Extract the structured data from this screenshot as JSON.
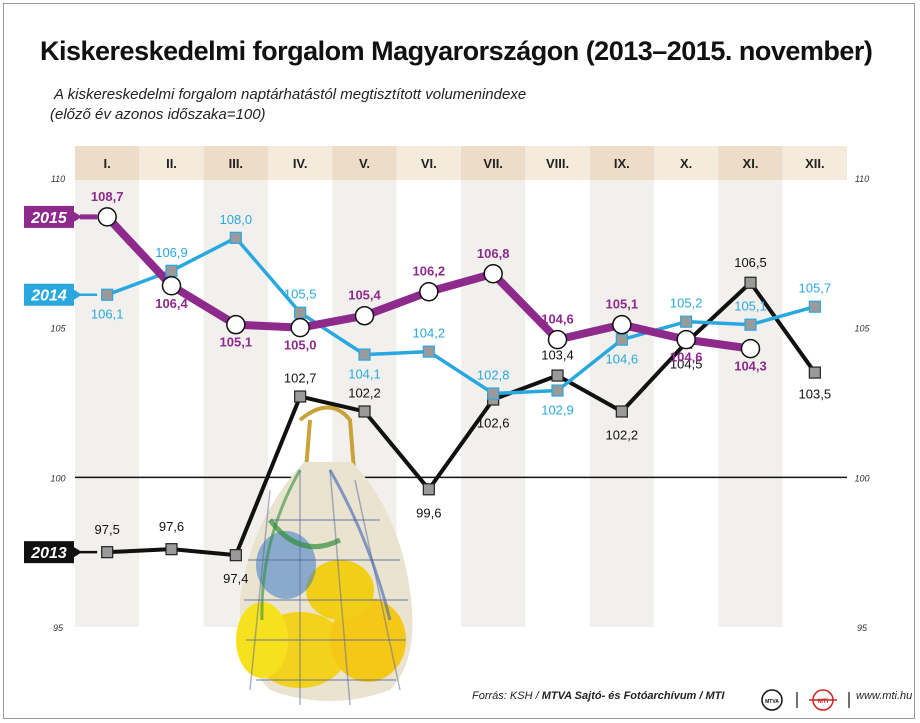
{
  "header": {
    "title": "Kiskereskedelmi forgalom Magyarországon (2013–2015. november)",
    "subtitle_line1": "A kiskereskedelmi forgalom naptárhatástól megtisztított volumenindexe",
    "subtitle_line2": "(előző év azonos időszaka=100)"
  },
  "chart_data": {
    "type": "line",
    "categories": [
      "I.",
      "II.",
      "III.",
      "IV.",
      "V.",
      "VI.",
      "VII.",
      "VIII.",
      "IX.",
      "X.",
      "XI.",
      "XII."
    ],
    "ylim": [
      95,
      110
    ],
    "yticks": [
      "95",
      "100",
      "105",
      "110"
    ],
    "reference_line": 100,
    "series": [
      {
        "name": "2015",
        "color": "#8e2a8c",
        "values": [
          108.7,
          106.4,
          105.1,
          105.0,
          105.4,
          106.2,
          106.8,
          104.6,
          105.1,
          104.6,
          104.3,
          null
        ],
        "labels": [
          "108,7",
          "106,4",
          "105,1",
          "105,0",
          "105,4",
          "106,2",
          "106,8",
          "104,6",
          "105,1",
          "104,6",
          "104,3",
          ""
        ]
      },
      {
        "name": "2014",
        "color": "#29a8df",
        "values": [
          106.1,
          106.9,
          108.0,
          105.5,
          104.1,
          104.2,
          102.8,
          102.9,
          104.6,
          105.2,
          105.1,
          105.7
        ],
        "labels": [
          "106,1",
          "106,9",
          "108,0",
          "105,5",
          "104,1",
          "104,2",
          "102,8",
          "102,9",
          "104,6",
          "105,2",
          "105,1",
          "105,7"
        ]
      },
      {
        "name": "2013",
        "color": "#111111",
        "values": [
          97.5,
          97.6,
          97.4,
          102.7,
          102.2,
          99.6,
          102.6,
          103.4,
          102.2,
          104.5,
          106.5,
          103.5
        ],
        "labels": [
          "97,5",
          "97,6",
          "97,4",
          "102,7",
          "102,2",
          "99,6",
          "102,6",
          "103,4",
          "102,2",
          "104,5",
          "106,5",
          "103,5"
        ]
      }
    ]
  },
  "footer": {
    "source_prefix": "Forrás: KSH /",
    "source_bold": "MTVA Sajtó- és Fotóarchívum / MTI",
    "logo1": "MTVA",
    "logo2": "MTI",
    "website": "www.mti.hu"
  },
  "icons": {
    "illustration": "string-bag-icon",
    "logo1": "mtva-logo-icon",
    "logo2": "mti-logo-icon"
  }
}
